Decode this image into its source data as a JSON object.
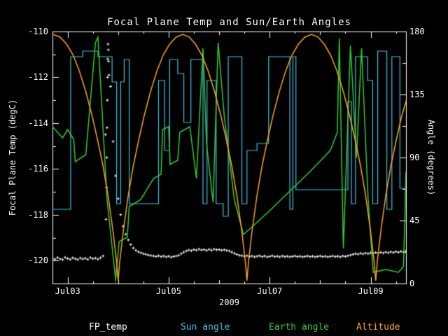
{
  "title": "Focal Plane Temp and Sun/Earth Angles",
  "colors": {
    "background": "#000000",
    "axis": "#ffffff",
    "fp_temp": "#ffffff",
    "sun_angle": "#3fc2e4",
    "earth_angle": "#33cc33",
    "altitude": "#ffa21f"
  },
  "axes": {
    "x": {
      "label": "2009",
      "range": [
        2.7,
        9.7
      ],
      "major_ticks": [
        {
          "value": 3,
          "label": "Jul03"
        },
        {
          "value": 5,
          "label": "Jul05"
        },
        {
          "value": 7,
          "label": "Jul07"
        },
        {
          "value": 9,
          "label": "Jul09"
        }
      ],
      "minor_ticks": [
        4,
        6,
        8
      ],
      "sub_ticks": [
        3.5,
        4.5,
        5.5,
        6.5,
        7.5,
        8.5,
        9.5
      ]
    },
    "y_left": {
      "label": "Focal Plane Temp (degC)",
      "range": [
        -121,
        -110
      ],
      "major_ticks": [
        -110,
        -112,
        -114,
        -116,
        -118,
        -120
      ],
      "minor_ticks": [
        -111,
        -113,
        -115,
        -117,
        -119
      ]
    },
    "y_right": {
      "label": "Angle (degrees)",
      "range": [
        0,
        180
      ],
      "major_ticks": [
        180,
        135,
        90,
        45,
        0
      ],
      "minor_ticks": [
        22.5,
        67.5,
        112.5,
        157.5
      ]
    }
  },
  "legend": [
    {
      "label": "FP_temp",
      "color_key": "fp_temp"
    },
    {
      "label": "Sun angle",
      "color_key": "sun_angle"
    },
    {
      "label": "Earth angle",
      "color_key": "earth_angle"
    },
    {
      "label": "Altitude",
      "color_key": "altitude"
    }
  ],
  "chart_data": {
    "type": "line",
    "title": "Focal Plane Temp and Sun/Earth Angles",
    "x_axis": "Date, day-of-July-2009 units (axis spans Jul02.7 - Jul09.7)",
    "series": [
      {
        "name": "FP_temp",
        "axis": "left",
        "style": "scatter_plus",
        "color_key": "fp_temp",
        "x_start": 2.7,
        "x_step": 0.05,
        "values": [
          -119.9,
          -119.94,
          -119.87,
          -119.93,
          -119.96,
          -119.86,
          -119.91,
          -119.95,
          -119.88,
          -119.92,
          -119.96,
          -119.89,
          -119.93,
          -119.9,
          -119.95,
          -119.87,
          -119.92,
          -119.89,
          -119.94,
          -119.88,
          -119.8,
          -114.5,
          -110.55,
          -112.4,
          -114.8,
          -116.3,
          -117.3,
          -118.0,
          -118.5,
          -118.85,
          -119.1,
          -119.3,
          -119.45,
          -119.55,
          -119.62,
          -119.66,
          -119.7,
          -119.73,
          -119.76,
          -119.78,
          -119.8,
          -119.82,
          -119.79,
          -119.83,
          -119.8,
          -119.84,
          -119.81,
          -119.85,
          -119.82,
          -119.8,
          -119.77,
          -119.7,
          -119.63,
          -119.58,
          -119.54,
          -119.57,
          -119.52,
          -119.55,
          -119.5,
          -119.54,
          -119.52,
          -119.56,
          -119.51,
          -119.55,
          -119.5,
          -119.53,
          -119.52,
          -119.55,
          -119.53,
          -119.56,
          -119.58,
          -119.63,
          -119.68,
          -119.73,
          -119.77,
          -119.79,
          -119.81,
          -119.79,
          -119.83,
          -119.8,
          -119.84,
          -119.81,
          -119.79,
          -119.83,
          -119.8,
          -119.84,
          -119.82,
          -119.79,
          -119.83,
          -119.81,
          -119.84,
          -119.8,
          -119.83,
          -119.81,
          -119.84,
          -119.82,
          -119.8,
          -119.83,
          -119.81,
          -119.84,
          -119.82,
          -119.8,
          -119.83,
          -119.81,
          -119.84,
          -119.82,
          -119.8,
          -119.83,
          -119.81,
          -119.84,
          -119.82,
          -119.8,
          -119.83,
          -119.81,
          -119.84,
          -119.8,
          -119.82,
          -119.79,
          -119.76,
          -119.73,
          -119.7,
          -119.72,
          -119.68,
          -119.71,
          -119.67,
          -119.7,
          -119.66,
          -119.69,
          -119.65,
          -119.68,
          -119.64,
          -119.67,
          -119.63,
          -119.66,
          -119.62,
          -119.65,
          -119.61,
          -119.64,
          -119.6,
          -119.63,
          -119.59
        ],
        "extra_points": [
          [
            3.76,
            -118.2
          ],
          [
            3.77,
            -116.8
          ],
          [
            3.775,
            -115.5
          ],
          [
            3.78,
            -114.2
          ],
          [
            3.785,
            -113.0
          ],
          [
            3.79,
            -112.0
          ],
          [
            3.795,
            -111.2
          ],
          [
            3.805,
            -110.8
          ],
          [
            3.81,
            -111.3
          ],
          [
            3.82,
            -111.9
          ]
        ]
      },
      {
        "name": "Sun angle",
        "axis": "right",
        "style": "step",
        "color_key": "sun_angle",
        "points": [
          [
            2.7,
            53
          ],
          [
            3.06,
            162
          ],
          [
            3.3,
            166
          ],
          [
            3.6,
            162
          ],
          [
            3.88,
            144
          ],
          [
            3.97,
            57
          ],
          [
            4.05,
            144
          ],
          [
            4.12,
            160
          ],
          [
            4.22,
            57
          ],
          [
            4.8,
            145
          ],
          [
            4.92,
            95
          ],
          [
            5.02,
            160
          ],
          [
            5.18,
            150
          ],
          [
            5.3,
            115
          ],
          [
            5.44,
            160
          ],
          [
            5.68,
            57
          ],
          [
            5.76,
            145
          ],
          [
            5.94,
            57
          ],
          [
            6.08,
            48
          ],
          [
            6.18,
            162
          ],
          [
            6.45,
            57
          ],
          [
            6.55,
            95
          ],
          [
            6.75,
            100
          ],
          [
            6.98,
            162
          ],
          [
            7.4,
            53
          ],
          [
            7.46,
            162
          ],
          [
            7.52,
            67
          ],
          [
            8.55,
            130
          ],
          [
            8.62,
            57
          ],
          [
            8.7,
            162
          ],
          [
            8.94,
            145
          ],
          [
            9.04,
            57
          ],
          [
            9.14,
            166
          ],
          [
            9.32,
            53
          ],
          [
            9.42,
            162
          ],
          [
            9.58,
            68
          ],
          [
            9.7,
            68
          ]
        ]
      },
      {
        "name": "Earth angle",
        "axis": "right",
        "style": "line",
        "color_key": "earth_angle",
        "points": [
          [
            2.7,
            112
          ],
          [
            2.9,
            104
          ],
          [
            3.0,
            110
          ],
          [
            3.12,
            103
          ],
          [
            3.15,
            87
          ],
          [
            3.36,
            92
          ],
          [
            3.55,
            172
          ],
          [
            3.6,
            176
          ],
          [
            3.78,
            60
          ],
          [
            3.95,
            3
          ],
          [
            4.02,
            30
          ],
          [
            4.18,
            33
          ],
          [
            4.22,
            55
          ],
          [
            4.45,
            60
          ],
          [
            4.7,
            75
          ],
          [
            4.85,
            78
          ],
          [
            4.88,
            110
          ],
          [
            5.0,
            112
          ],
          [
            5.03,
            85
          ],
          [
            5.18,
            88
          ],
          [
            5.22,
            108
          ],
          [
            5.42,
            112
          ],
          [
            5.55,
            75
          ],
          [
            5.68,
            168
          ],
          [
            5.75,
            100
          ],
          [
            5.88,
            58
          ],
          [
            5.98,
            172
          ],
          [
            6.1,
            120
          ],
          [
            6.3,
            60
          ],
          [
            6.48,
            35
          ],
          [
            6.7,
            42
          ],
          [
            7.0,
            52
          ],
          [
            7.4,
            66
          ],
          [
            7.8,
            80
          ],
          [
            8.2,
            95
          ],
          [
            8.34,
            108
          ],
          [
            8.38,
            175
          ],
          [
            8.46,
            25
          ],
          [
            8.6,
            170
          ],
          [
            8.72,
            90
          ],
          [
            8.82,
            168
          ],
          [
            8.95,
            60
          ],
          [
            9.05,
            8
          ],
          [
            9.3,
            10
          ],
          [
            9.55,
            8
          ],
          [
            9.65,
            12
          ],
          [
            9.68,
            50
          ],
          [
            9.7,
            80
          ]
        ]
      },
      {
        "name": "Altitude",
        "axis": "right",
        "style": "line",
        "color_key": "altitude",
        "points": [
          [
            2.7,
            178
          ],
          [
            2.85,
            176
          ],
          [
            2.98,
            171
          ],
          [
            3.11,
            163
          ],
          [
            3.23,
            152
          ],
          [
            3.36,
            137
          ],
          [
            3.49,
            119
          ],
          [
            3.59,
            103
          ],
          [
            3.7,
            84
          ],
          [
            3.8,
            63
          ],
          [
            3.9,
            37
          ],
          [
            3.97,
            15
          ],
          [
            4.0,
            2
          ],
          [
            4.03,
            15
          ],
          [
            4.1,
            37
          ],
          [
            4.2,
            63
          ],
          [
            4.3,
            84
          ],
          [
            4.41,
            103
          ],
          [
            4.51,
            119
          ],
          [
            4.64,
            137
          ],
          [
            4.77,
            152
          ],
          [
            4.89,
            163
          ],
          [
            5.02,
            171
          ],
          [
            5.15,
            176
          ],
          [
            5.28,
            178
          ],
          [
            5.41,
            176
          ],
          [
            5.53,
            171
          ],
          [
            5.66,
            163
          ],
          [
            5.78,
            152
          ],
          [
            5.91,
            137
          ],
          [
            6.04,
            119
          ],
          [
            6.14,
            103
          ],
          [
            6.25,
            84
          ],
          [
            6.35,
            63
          ],
          [
            6.45,
            37
          ],
          [
            6.52,
            15
          ],
          [
            6.55,
            2
          ],
          [
            6.58,
            15
          ],
          [
            6.65,
            37
          ],
          [
            6.75,
            63
          ],
          [
            6.85,
            84
          ],
          [
            6.96,
            103
          ],
          [
            7.06,
            119
          ],
          [
            7.19,
            137
          ],
          [
            7.32,
            152
          ],
          [
            7.44,
            163
          ],
          [
            7.57,
            171
          ],
          [
            7.7,
            176
          ],
          [
            7.83,
            178
          ],
          [
            7.96,
            176
          ],
          [
            8.08,
            171
          ],
          [
            8.21,
            163
          ],
          [
            8.33,
            152
          ],
          [
            8.46,
            137
          ],
          [
            8.59,
            119
          ],
          [
            8.69,
            103
          ],
          [
            8.8,
            84
          ],
          [
            8.9,
            63
          ],
          [
            9.0,
            37
          ],
          [
            9.07,
            15
          ],
          [
            9.1,
            2
          ],
          [
            9.13,
            15
          ],
          [
            9.2,
            37
          ],
          [
            9.3,
            63
          ],
          [
            9.4,
            84
          ],
          [
            9.51,
            103
          ],
          [
            9.61,
            119
          ],
          [
            9.7,
            130
          ]
        ]
      }
    ]
  }
}
